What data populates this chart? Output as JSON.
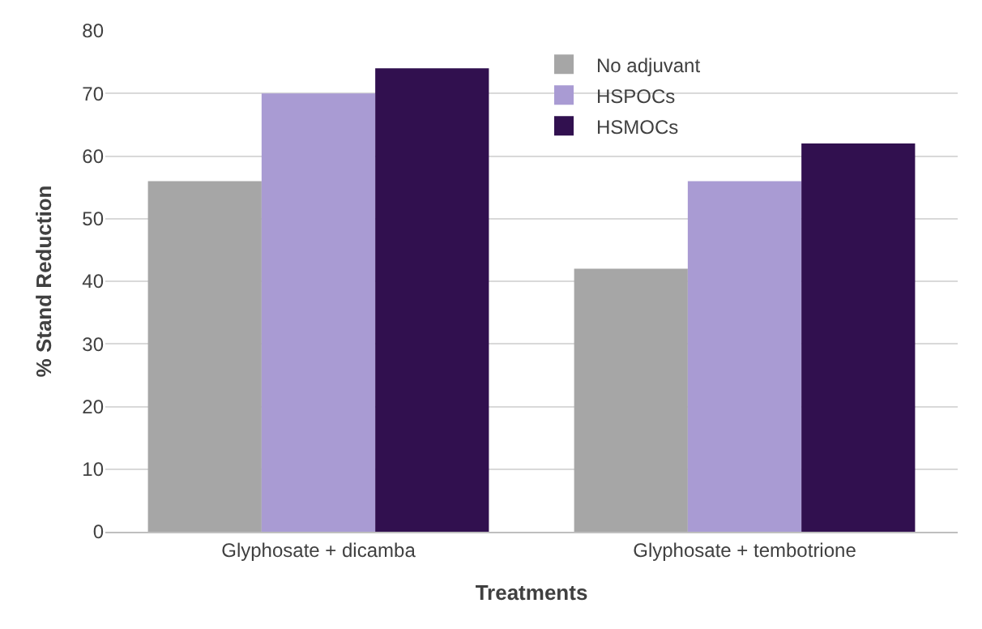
{
  "chart_data": {
    "type": "bar",
    "xlabel": "Treatments",
    "ylabel": "% Stand Reduction",
    "categories": [
      "Glyphosate + dicamba",
      "Glyphosate + tembotrione"
    ],
    "series": [
      {
        "name": "No adjuvant",
        "color": "#a6a6a6",
        "values": [
          56,
          42
        ]
      },
      {
        "name": "HSPOCs",
        "color": "#a99bd3",
        "values": [
          70,
          56
        ]
      },
      {
        "name": "HSMOCs",
        "color": "#31104f",
        "values": [
          74,
          62
        ]
      }
    ],
    "ylim": [
      0,
      80
    ],
    "yticks": [
      0,
      10,
      20,
      30,
      40,
      50,
      60,
      70,
      80
    ],
    "grid": "y",
    "legend": "top"
  }
}
